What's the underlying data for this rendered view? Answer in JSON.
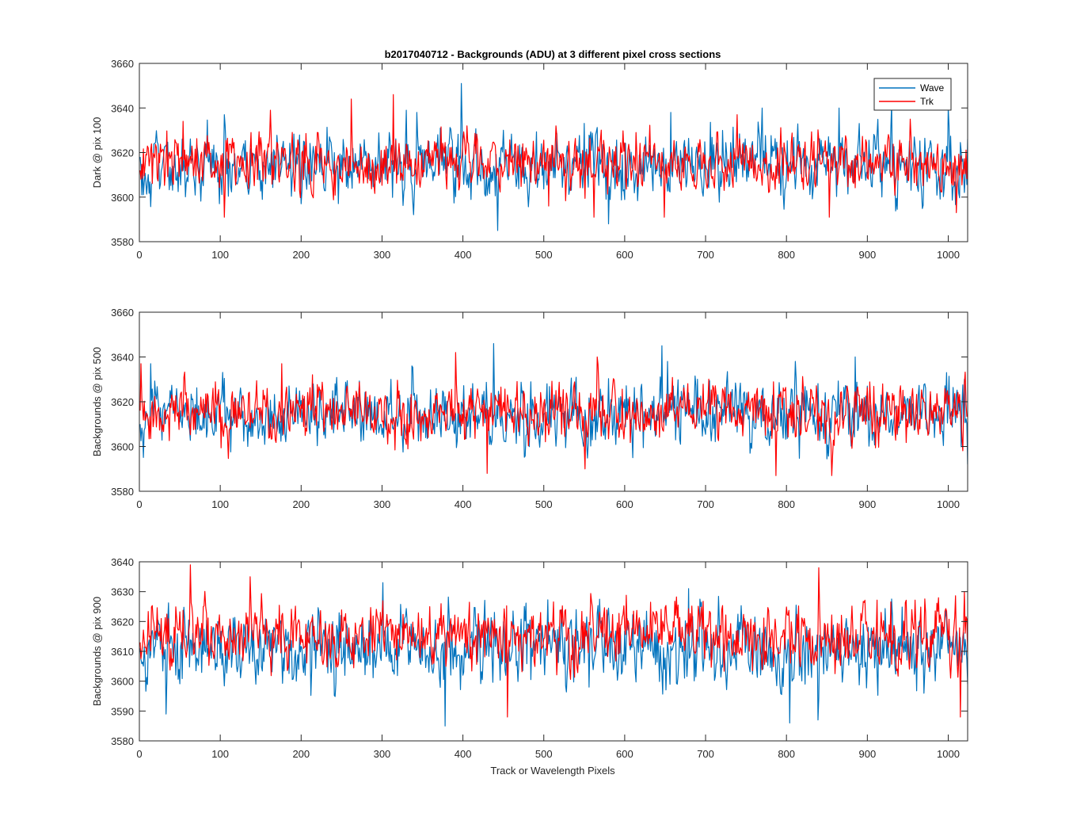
{
  "figure": {
    "title": "b2017040712 - Backgrounds (ADU) at 3 different pixel cross sections",
    "xlabel": "Track or Wavelength Pixels"
  },
  "legend": {
    "placement": "top-right",
    "entries": [
      {
        "name": "Wave",
        "color": "#0072BD"
      },
      {
        "name": "Trk",
        "color": "#FF0000"
      }
    ]
  },
  "chart_data": [
    {
      "type": "line",
      "ylabel": "Dark @ pix 100",
      "xlim": [
        0,
        1024
      ],
      "ylim": [
        3580,
        3660
      ],
      "xticks": [
        0,
        100,
        200,
        300,
        400,
        500,
        600,
        700,
        800,
        900,
        1000
      ],
      "yticks": [
        3580,
        3600,
        3620,
        3640,
        3660
      ],
      "grid": false,
      "legend": "top-right",
      "x_range": [
        1,
        1024
      ],
      "series": [
        {
          "name": "Wave",
          "color": "#0072BD",
          "mean": 3614,
          "spread": 7,
          "x": [
            0,
            105,
            200,
            330,
            343,
            398,
            443,
            450,
            580,
            657,
            770,
            865,
            930,
            1000,
            1024
          ],
          "values": [
            3618,
            3637,
            3597,
            3639,
            3638,
            3651,
            3585,
            3630,
            3588,
            3638,
            3640,
            3640,
            3642,
            3640,
            3626
          ]
        },
        {
          "name": "Trk",
          "color": "#FF0000",
          "mean": 3615,
          "spread": 6,
          "x": [
            0,
            54,
            105,
            162,
            262,
            314,
            405,
            506,
            562,
            649,
            739,
            853,
            953,
            1010,
            1024
          ],
          "values": [
            3612,
            3634,
            3591,
            3639,
            3644,
            3646,
            3632,
            3596,
            3591,
            3591,
            3637,
            3591,
            3635,
            3593,
            3617
          ]
        }
      ]
    },
    {
      "type": "line",
      "ylabel": "Backgrounds @ pix 500",
      "xlim": [
        0,
        1024
      ],
      "ylim": [
        3580,
        3660
      ],
      "xticks": [
        0,
        100,
        200,
        300,
        400,
        500,
        600,
        700,
        800,
        900,
        1000
      ],
      "yticks": [
        3580,
        3600,
        3620,
        3640,
        3660
      ],
      "grid": false,
      "x_range": [
        1,
        1024
      ],
      "series": [
        {
          "name": "Wave",
          "color": "#0072BD",
          "mean": 3614,
          "spread": 7,
          "x": [
            0,
            14,
            337,
            438,
            646,
            653,
            811,
            885,
            1020,
            1024
          ],
          "values": [
            3610,
            3637,
            3636,
            3646,
            3645,
            3638,
            3638,
            3640,
            3630,
            3592
          ]
        },
        {
          "name": "Trk",
          "color": "#FF0000",
          "mean": 3615,
          "spread": 6,
          "x": [
            0,
            2,
            176,
            391,
            430,
            551,
            566,
            787,
            856,
            1024
          ],
          "values": [
            3616,
            3637,
            3637,
            3642,
            3588,
            3590,
            3640,
            3587,
            3587,
            3614
          ]
        }
      ]
    },
    {
      "type": "line",
      "ylabel": "Backgrounds @ pix 900",
      "xlim": [
        0,
        1024
      ],
      "ylim": [
        3580,
        3640
      ],
      "xticks": [
        0,
        100,
        200,
        300,
        400,
        500,
        600,
        700,
        800,
        900,
        1000
      ],
      "yticks": [
        3580,
        3590,
        3600,
        3610,
        3620,
        3630,
        3640
      ],
      "grid": false,
      "x_range": [
        1,
        1024
      ],
      "series": [
        {
          "name": "Wave",
          "color": "#0072BD",
          "mean": 3611,
          "spread": 6,
          "x": [
            0,
            33,
            301,
            378,
            679,
            804,
            839,
            1024
          ],
          "values": [
            3611,
            3589,
            3633,
            3585,
            3631,
            3586,
            3587,
            3599
          ]
        },
        {
          "name": "Trk",
          "color": "#FF0000",
          "mean": 3615,
          "spread": 5,
          "x": [
            0,
            63,
            137,
            455,
            840,
            1015,
            1020,
            1024
          ],
          "values": [
            3613,
            3639,
            3635,
            3588,
            3638,
            3588,
            3630,
            3609
          ]
        }
      ]
    }
  ]
}
